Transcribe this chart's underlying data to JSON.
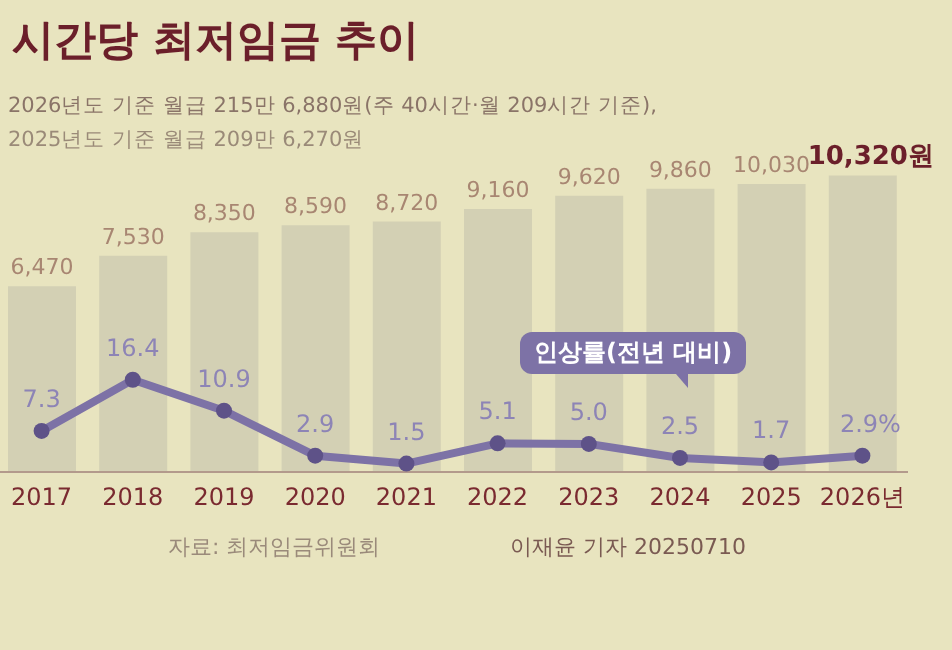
{
  "chart_data": {
    "type": "bar",
    "title": "시간당 최저임금 추이",
    "subtitle": "2026년도 기준 월급 215만 6,880원(주 40시간·월 209시간 기준),",
    "annotations": [
      "2025년도 기준 월급 209만 6,270원",
      "자료: 최저임금위원회",
      "이재윤 기자 20250710"
    ],
    "categories": [
      "2017",
      "2018",
      "2019",
      "2020",
      "2021",
      "2022",
      "2023",
      "2024",
      "2025",
      "2026년"
    ],
    "series": [
      {
        "color": "#d3d0b4",
        "values": [
          6470,
          7530,
          8350,
          8590,
          8720,
          9160,
          9620,
          9860,
          10030,
          10320
        ],
        "value_labels": [
          "6,470",
          "7,530",
          "8,350",
          "8,590",
          "8,720",
          "9,160",
          "9,620",
          "9,860",
          "10,030",
          "10,320원"
        ]
      },
      {
        "type": "line",
        "name": "인상률(전년 대비)",
        "axis": "y2",
        "color": "#7d72a6",
        "marker": "circle",
        "values": [
          7.3,
          16.4,
          10.9,
          2.9,
          1.5,
          5.1,
          5.0,
          2.5,
          1.7,
          2.9
        ],
        "value_labels": [
          "7.3",
          "16.4",
          "10.9",
          "2.9",
          "1.5",
          "5.1",
          "5.0",
          "2.5",
          "1.7",
          "2.9%"
        ]
      }
    ]
  }
}
